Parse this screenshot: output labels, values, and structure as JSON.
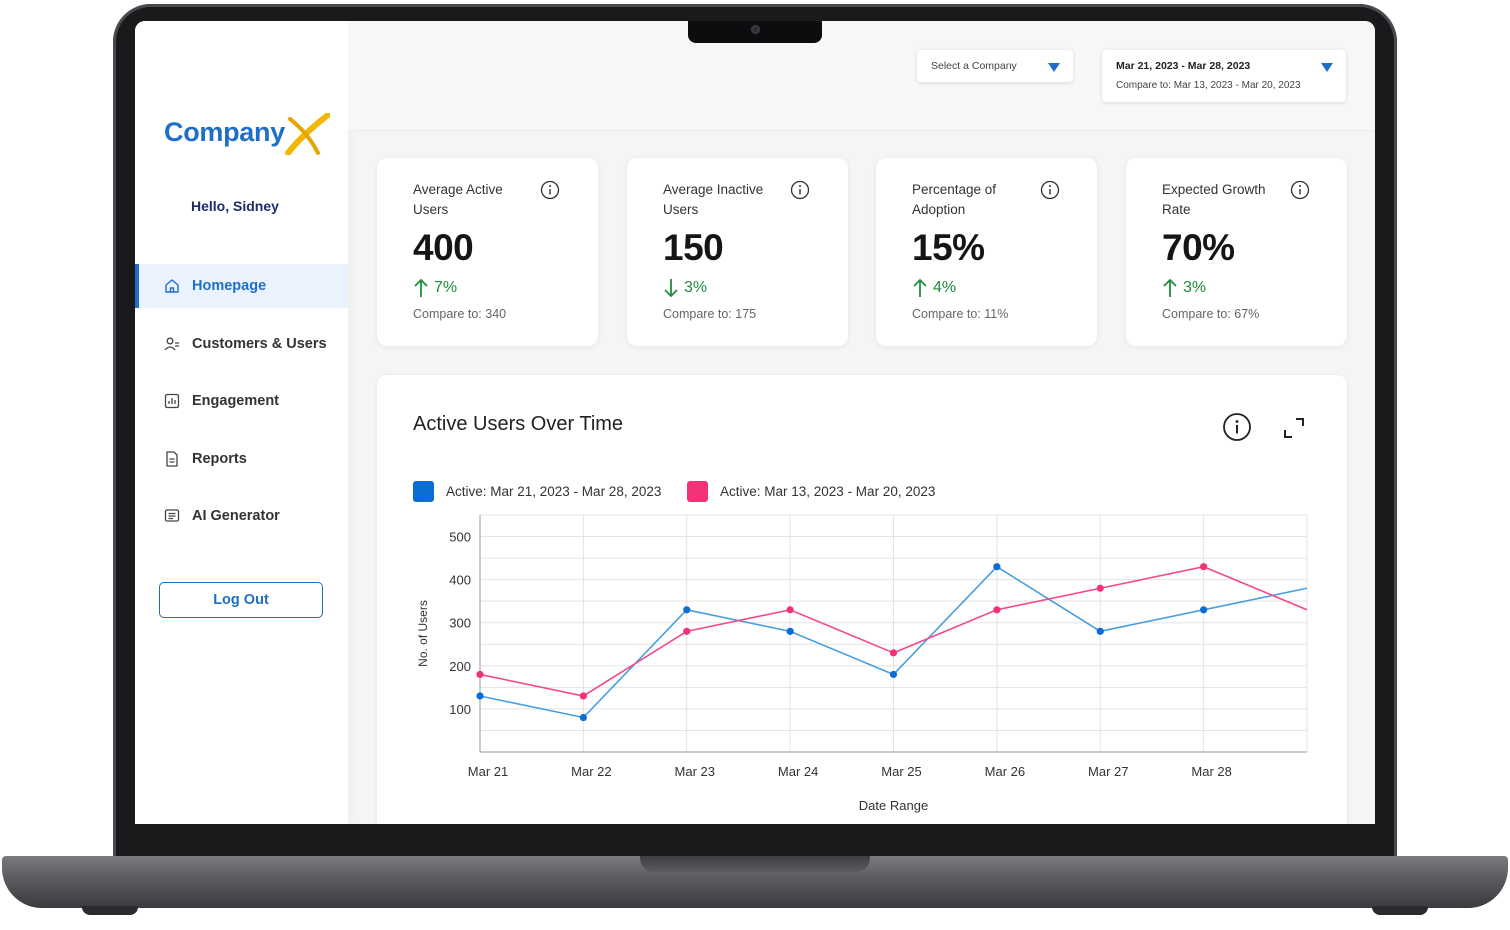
{
  "app": {
    "logo_text": "Company",
    "greeting": "Hello, Sidney"
  },
  "sidebar": {
    "items": [
      {
        "label": "Homepage",
        "icon": "home-icon",
        "active": true
      },
      {
        "label": "Customers & Users",
        "icon": "users-icon",
        "active": false
      },
      {
        "label": "Engagement",
        "icon": "bar-chart-icon",
        "active": false
      },
      {
        "label": "Reports",
        "icon": "document-icon",
        "active": false
      },
      {
        "label": "AI Generator",
        "icon": "message-icon",
        "active": false
      }
    ],
    "logout_label": "Log Out"
  },
  "header": {
    "company_select": {
      "label": "Select a Company"
    },
    "date_select": {
      "range": "Mar 21, 2023 - Mar 28, 2023",
      "compare": "Compare to: Mar 13, 2023 - Mar 20, 2023"
    }
  },
  "kpis": [
    {
      "title": "Average Active Users",
      "value": "400",
      "delta": "7%",
      "direction": "up",
      "compare": "Compare to: 340"
    },
    {
      "title": "Average Inactive Users",
      "value": "150",
      "delta": "3%",
      "direction": "down",
      "compare": "Compare to: 175"
    },
    {
      "title": "Percentage of Adoption",
      "value": "15%",
      "delta": "4%",
      "direction": "up",
      "compare": "Compare to: 11%"
    },
    {
      "title": "Expected Growth Rate",
      "value": "70%",
      "delta": "3%",
      "direction": "up",
      "compare": "Compare to: 67%"
    }
  ],
  "colors": {
    "brand": "#1f6fc8",
    "positive": "#1f8c3b",
    "series_current": "#4a9fe0",
    "series_current_swatch": "#0c6ed3",
    "series_previous": "#f5498b",
    "series_previous_swatch": "#f43179"
  },
  "chart_data": {
    "type": "line",
    "title": "Active Users Over Time",
    "xlabel": "Date Range",
    "ylabel": "No. of Users",
    "categories": [
      "Mar 21",
      "Mar 22",
      "Mar 23",
      "Mar 24",
      "Mar 25",
      "Mar 26",
      "Mar 27",
      "Mar 28"
    ],
    "yticks": [
      100,
      200,
      300,
      400,
      500
    ],
    "ylim": [
      0,
      550
    ],
    "grid": true,
    "legend_position": "top-left",
    "series": [
      {
        "name": "Active: Mar 21, 2023 - Mar 28, 2023",
        "values": [
          130,
          80,
          330,
          280,
          180,
          430,
          280,
          330
        ],
        "end_value": 380
      },
      {
        "name": "Active: Mar 13, 2023 - Mar 20, 2023",
        "values": [
          180,
          130,
          280,
          330,
          230,
          330,
          380,
          430
        ],
        "end_value": 330
      }
    ]
  }
}
